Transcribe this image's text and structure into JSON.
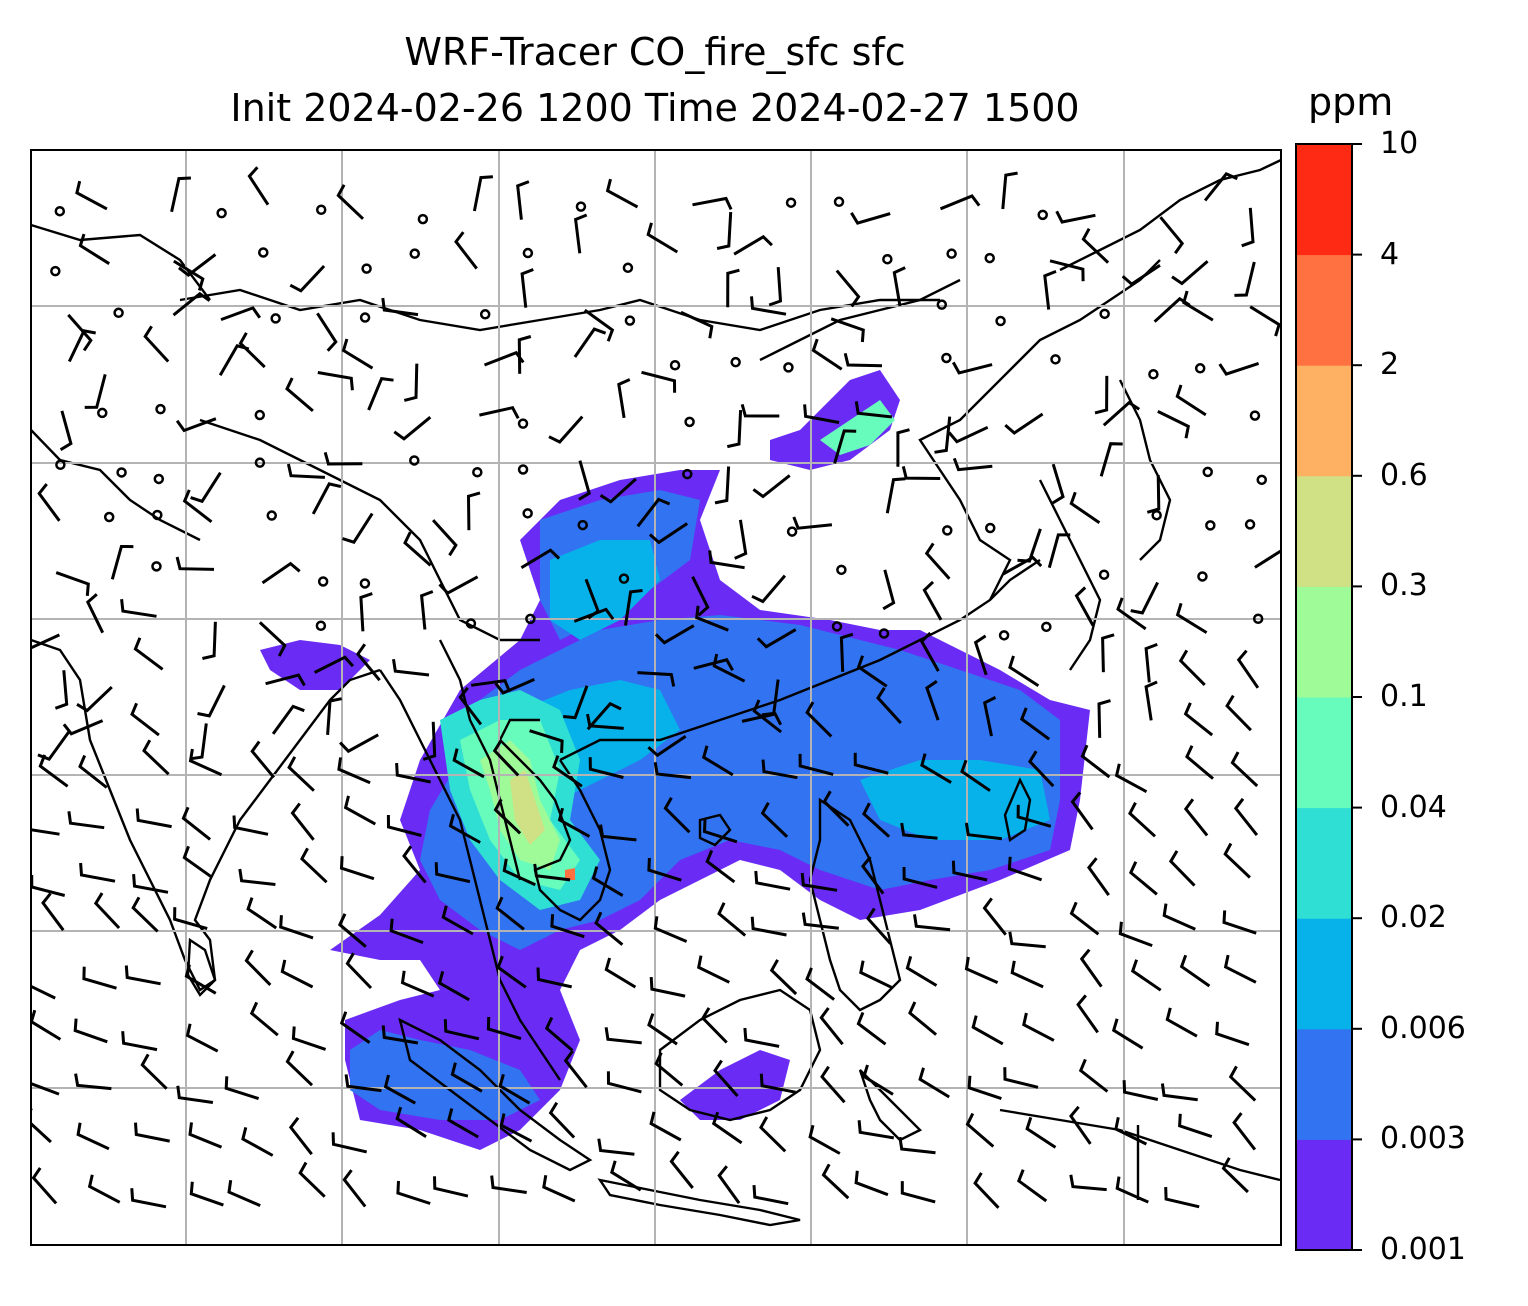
{
  "title_line1": "WRF-Tracer CO_fire_sfc sfc",
  "title_line2": "Init 2024-02-26 1200 Time 2024-02-27 1500",
  "colorbar": {
    "unit": "ppm",
    "ticks": [
      "0.001",
      "0.003",
      "0.006",
      "0.02",
      "0.04",
      "0.1",
      "0.3",
      "0.6",
      "2",
      "4",
      "10"
    ],
    "colors": [
      "#6a2cf5",
      "#3173f0",
      "#07b2ea",
      "#30dfd4",
      "#67fbbc",
      "#9ffa98",
      "#cfe085",
      "#ffb163",
      "#ff7140",
      "#ff2a14"
    ]
  },
  "map": {
    "field": "CO_fire_sfc",
    "wind_barbs": true,
    "gridlines": true,
    "coastlines": true
  }
}
